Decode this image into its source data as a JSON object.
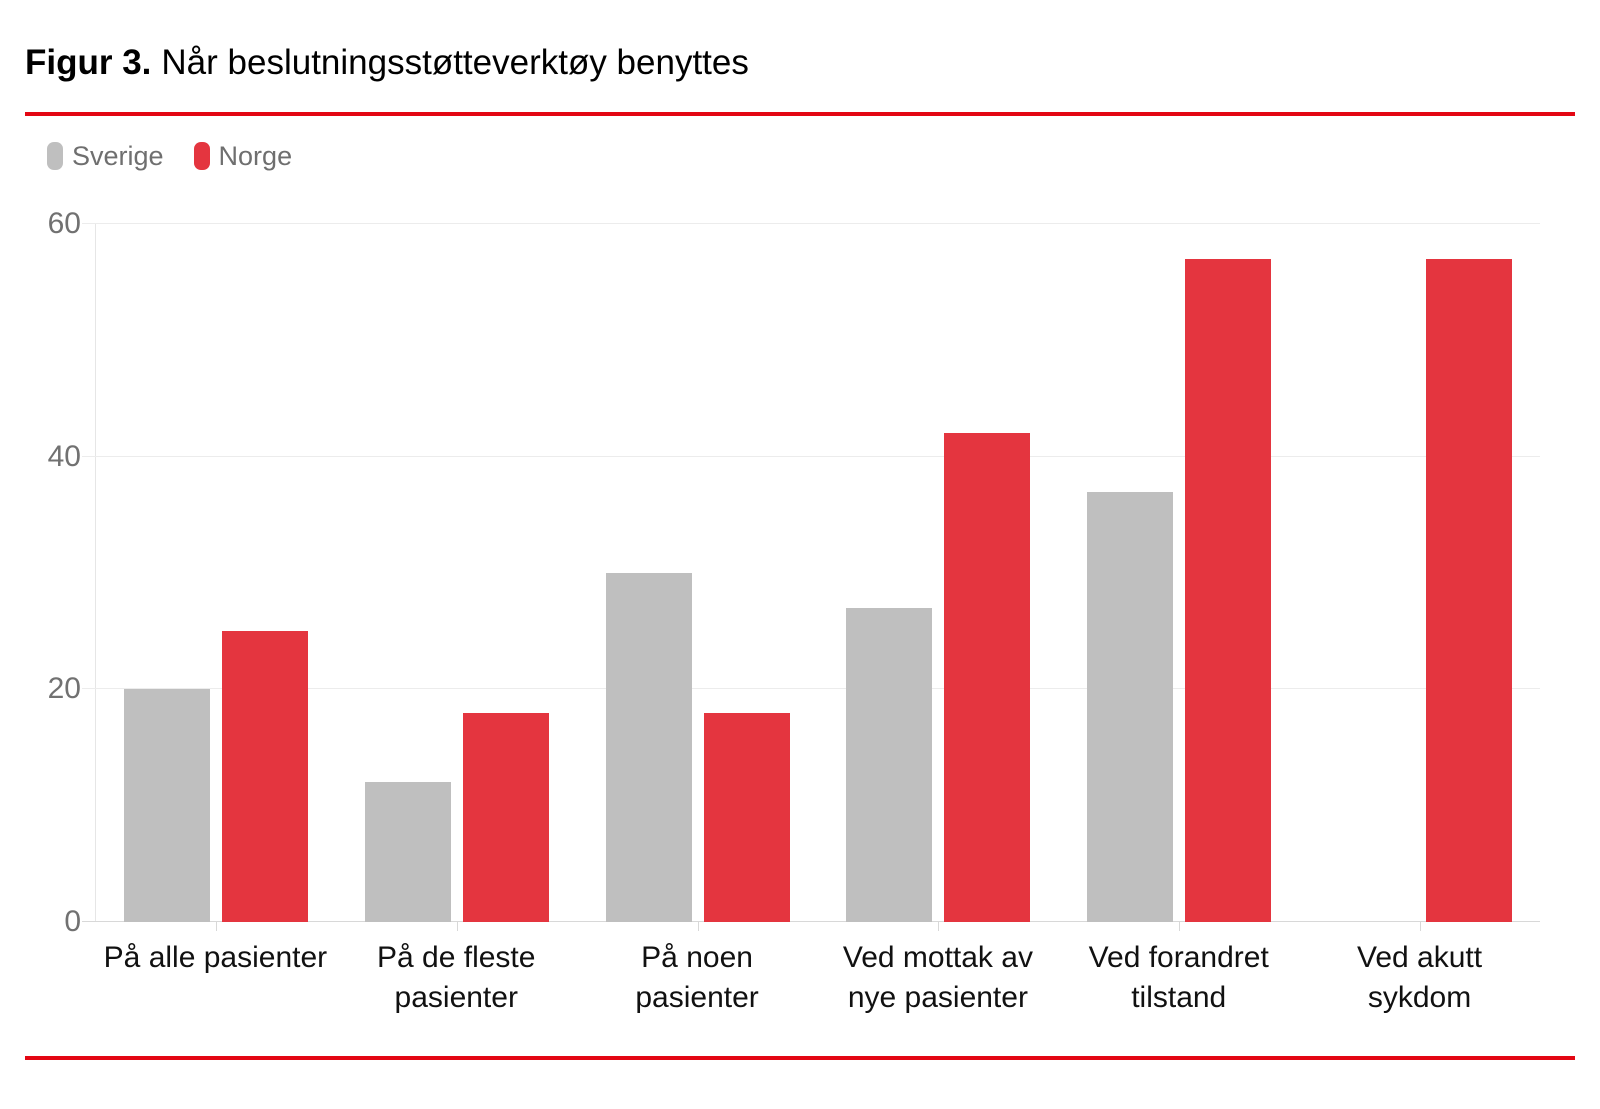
{
  "page": {
    "title_prefix": "Figur 3.",
    "title_rest": "Når beslutningsstøtteverktøy benyttes"
  },
  "legend": {
    "items": [
      {
        "label": "Sverige",
        "color": "#bfbfbf"
      },
      {
        "label": "Norge",
        "color": "#e4353f"
      }
    ]
  },
  "colors": {
    "divider_red": "#e30613",
    "bar_gray": "#bfbfbf",
    "bar_red": "#e4353f",
    "grid": "#ececec",
    "baseline": "#d8d8d8",
    "y_tick_label": "#717171",
    "category_label": "#111111"
  },
  "chart_data": {
    "type": "bar",
    "title": "Figur 3. Når beslutningsstøtteverktøy benyttes",
    "categories": [
      "På alle pasienter",
      "På de fleste pasienter",
      "På noen pasienter",
      "Ved mottak av nye pasienter",
      "Ved forandret tilstand",
      "Ved akutt sykdom"
    ],
    "category_lines": [
      [
        "På alle pasienter"
      ],
      [
        "På de fleste",
        "pasienter"
      ],
      [
        "På noen",
        "pasienter"
      ],
      [
        "Ved mottak av",
        "nye pasienter"
      ],
      [
        "Ved forandret",
        "tilstand"
      ],
      [
        "Ved akutt",
        "sykdom"
      ]
    ],
    "series": [
      {
        "name": "Sverige",
        "color": "#bfbfbf",
        "values": [
          20,
          12,
          30,
          27,
          37,
          null
        ]
      },
      {
        "name": "Norge",
        "color": "#e4353f",
        "values": [
          25,
          18,
          18,
          42,
          57,
          57
        ]
      }
    ],
    "xlabel": "",
    "ylabel": "",
    "ylim": [
      0,
      60
    ],
    "yticks": [
      0,
      20,
      40,
      60
    ],
    "grid": true,
    "legend_position": "top-left"
  }
}
